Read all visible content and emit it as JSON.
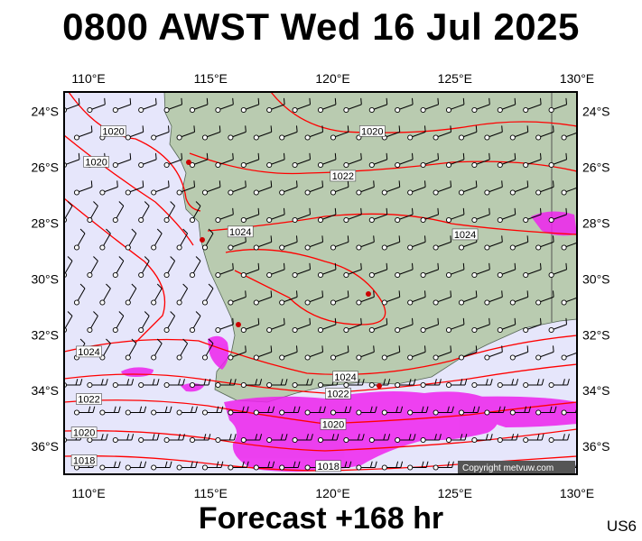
{
  "title": "0800 AWST Wed 16 Jul 2025",
  "footer": "Forecast +168 hr",
  "code": "US6",
  "copyright": "Copyright metvuw.com",
  "map": {
    "lon_range": [
      109,
      130
    ],
    "lat_range": [
      -37,
      -23.3
    ],
    "lon_ticks": [
      "110°E",
      "115°E",
      "120°E",
      "125°E",
      "130°E"
    ],
    "lat_ticks": [
      "24°S",
      "26°S",
      "28°S",
      "30°S",
      "32°S",
      "34°S",
      "36°S"
    ],
    "colors": {
      "ocean": "#e6e6fb",
      "land": "#b9cbb0",
      "isobar": "#ff0000",
      "rain": "#ee22ee",
      "barb": "#000000"
    }
  },
  "isobar_labels": [
    {
      "text": "1020",
      "lon": 110.5,
      "lat": -24.8
    },
    {
      "text": "1020",
      "lon": 109.8,
      "lat": -25.9
    },
    {
      "text": "1020",
      "lon": 121.1,
      "lat": -24.8
    },
    {
      "text": "1022",
      "lon": 119.9,
      "lat": -26.4
    },
    {
      "text": "1024",
      "lon": 115.7,
      "lat": -28.4
    },
    {
      "text": "1024",
      "lon": 124.9,
      "lat": -28.5
    },
    {
      "text": "1024",
      "lon": 109.5,
      "lat": -32.7
    },
    {
      "text": "1024",
      "lon": 120.0,
      "lat": -33.6
    },
    {
      "text": "1022",
      "lon": 109.5,
      "lat": -34.4
    },
    {
      "text": "1022",
      "lon": 119.7,
      "lat": -34.2
    },
    {
      "text": "1020",
      "lon": 119.5,
      "lat": -35.3
    },
    {
      "text": "1020",
      "lon": 109.3,
      "lat": -35.6
    },
    {
      "text": "1018",
      "lon": 109.3,
      "lat": -36.6
    },
    {
      "text": "1018",
      "lon": 119.3,
      "lat": -36.8
    }
  ]
}
